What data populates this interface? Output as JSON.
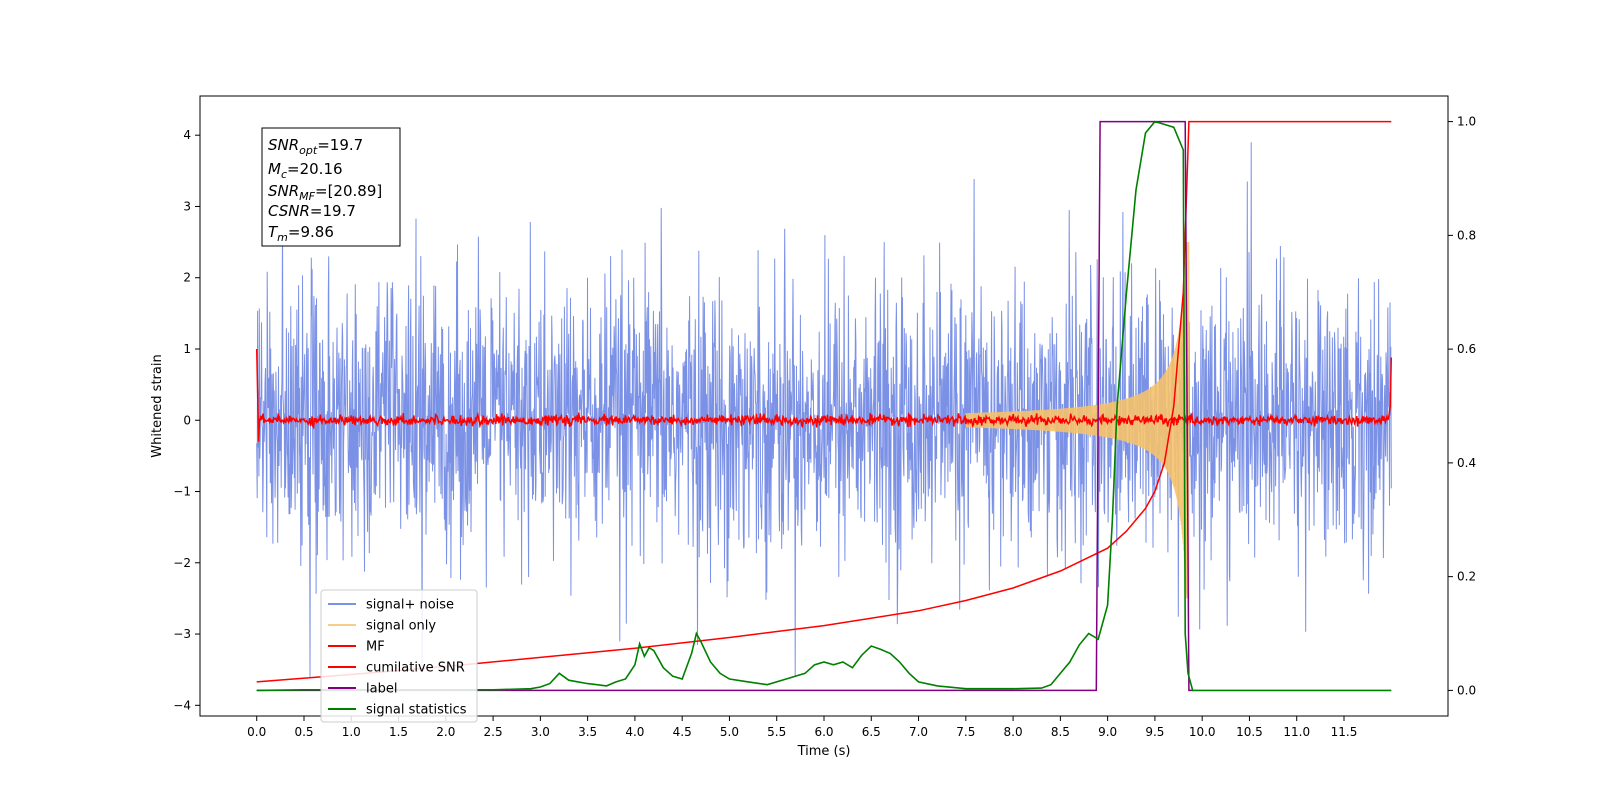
{
  "chart_data": {
    "type": "line",
    "title": "",
    "xlabel": "Time (s)",
    "ylabel": "Whitened strain",
    "y2label": "",
    "xlim": [
      -0.6,
      12.6
    ],
    "ylim": [
      -4.15,
      4.55
    ],
    "y2lim": [
      -0.045,
      1.045
    ],
    "xticks": [
      "0.0",
      "0.5",
      "1.0",
      "1.5",
      "2.0",
      "2.5",
      "3.0",
      "3.5",
      "4.0",
      "4.5",
      "5.0",
      "5.5",
      "6.0",
      "6.5",
      "7.0",
      "7.5",
      "8.0",
      "8.5",
      "9.0",
      "9.5",
      "10.0",
      "10.5",
      "11.0",
      "11.5"
    ],
    "yticks": [
      "4",
      "3",
      "2",
      "1",
      "0",
      "−1",
      "−2",
      "−3",
      "−4"
    ],
    "y2ticks": [
      "1.0",
      "0.8",
      "0.6",
      "0.4",
      "0.2",
      "0.0"
    ],
    "grid": false,
    "legend_position": "lower-left",
    "annotation": {
      "lines": [
        {
          "var": "SNR",
          "sub": "opt",
          "text": "=19.7"
        },
        {
          "var": "M",
          "sub": "c",
          "text": "=20.16"
        },
        {
          "var": "SNR",
          "sub": "MF",
          "text": "=[20.89]"
        },
        {
          "var": "CSNR",
          "sub": "",
          "text": "=19.7"
        },
        {
          "var": "T",
          "sub": "m",
          "text": "=9.86"
        }
      ]
    },
    "series": [
      {
        "name": "signal+ noise",
        "axis": "left",
        "color": "#7b91e6",
        "description": "whitened noise plus signal, roughly within ±2.5 with spikes to ±3.9"
      },
      {
        "name": "signal only",
        "axis": "left",
        "color": "#f5c26b",
        "description": "chirp growing in amplitude up to about ±2.5 near t=9.8 then ending"
      },
      {
        "name": "MF",
        "axis": "left",
        "color": "#ff0000",
        "description": "matched filter output near 0 with spikes at the edges"
      },
      {
        "name": "cumilative SNR",
        "axis": "right",
        "color": "#ff0000",
        "points": [
          [
            0.0,
            0.015
          ],
          [
            1.0,
            0.028
          ],
          [
            2.0,
            0.042
          ],
          [
            3.0,
            0.058
          ],
          [
            4.0,
            0.074
          ],
          [
            5.0,
            0.093
          ],
          [
            6.0,
            0.114
          ],
          [
            7.0,
            0.14
          ],
          [
            7.5,
            0.158
          ],
          [
            8.0,
            0.18
          ],
          [
            8.5,
            0.21
          ],
          [
            9.0,
            0.25
          ],
          [
            9.2,
            0.28
          ],
          [
            9.4,
            0.32
          ],
          [
            9.5,
            0.35
          ],
          [
            9.6,
            0.4
          ],
          [
            9.7,
            0.5
          ],
          [
            9.75,
            0.6
          ],
          [
            9.8,
            0.7
          ],
          [
            9.82,
            0.8
          ],
          [
            9.85,
            0.95
          ],
          [
            9.86,
            1.0
          ],
          [
            12.0,
            1.0
          ]
        ]
      },
      {
        "name": "label",
        "axis": "right",
        "color": "#800080",
        "points": [
          [
            0.0,
            0.0
          ],
          [
            8.88,
            0.0
          ],
          [
            8.92,
            1.0
          ],
          [
            9.82,
            1.0
          ],
          [
            9.86,
            0.0
          ],
          [
            9.9,
            0.0
          ]
        ]
      },
      {
        "name": "signal statistics",
        "axis": "right",
        "color": "#008000",
        "points": [
          [
            0.0,
            0.0
          ],
          [
            0.5,
            0.001
          ],
          [
            1.0,
            0.001
          ],
          [
            1.5,
            0.001
          ],
          [
            2.0,
            0.001
          ],
          [
            2.5,
            0.001
          ],
          [
            2.9,
            0.003
          ],
          [
            3.0,
            0.006
          ],
          [
            3.1,
            0.012
          ],
          [
            3.2,
            0.03
          ],
          [
            3.3,
            0.018
          ],
          [
            3.4,
            0.015
          ],
          [
            3.5,
            0.012
          ],
          [
            3.6,
            0.01
          ],
          [
            3.7,
            0.008
          ],
          [
            3.8,
            0.015
          ],
          [
            3.9,
            0.02
          ],
          [
            4.0,
            0.045
          ],
          [
            4.05,
            0.082
          ],
          [
            4.1,
            0.06
          ],
          [
            4.15,
            0.075
          ],
          [
            4.2,
            0.07
          ],
          [
            4.3,
            0.04
          ],
          [
            4.4,
            0.025
          ],
          [
            4.5,
            0.02
          ],
          [
            4.6,
            0.065
          ],
          [
            4.65,
            0.1
          ],
          [
            4.7,
            0.085
          ],
          [
            4.8,
            0.05
          ],
          [
            4.9,
            0.03
          ],
          [
            5.0,
            0.02
          ],
          [
            5.2,
            0.015
          ],
          [
            5.4,
            0.01
          ],
          [
            5.6,
            0.02
          ],
          [
            5.8,
            0.03
          ],
          [
            5.9,
            0.045
          ],
          [
            6.0,
            0.05
          ],
          [
            6.1,
            0.045
          ],
          [
            6.2,
            0.05
          ],
          [
            6.3,
            0.04
          ],
          [
            6.4,
            0.062
          ],
          [
            6.5,
            0.078
          ],
          [
            6.6,
            0.072
          ],
          [
            6.7,
            0.065
          ],
          [
            6.8,
            0.05
          ],
          [
            6.9,
            0.03
          ],
          [
            7.0,
            0.015
          ],
          [
            7.2,
            0.008
          ],
          [
            7.5,
            0.003
          ],
          [
            8.0,
            0.003
          ],
          [
            8.3,
            0.004
          ],
          [
            8.4,
            0.01
          ],
          [
            8.5,
            0.03
          ],
          [
            8.6,
            0.05
          ],
          [
            8.7,
            0.08
          ],
          [
            8.8,
            0.1
          ],
          [
            8.9,
            0.09
          ],
          [
            9.0,
            0.15
          ],
          [
            9.05,
            0.3
          ],
          [
            9.1,
            0.5
          ],
          [
            9.2,
            0.7
          ],
          [
            9.3,
            0.88
          ],
          [
            9.4,
            0.98
          ],
          [
            9.5,
            1.0
          ],
          [
            9.6,
            0.995
          ],
          [
            9.7,
            0.99
          ],
          [
            9.8,
            0.95
          ],
          [
            9.82,
            0.1
          ],
          [
            9.85,
            0.03
          ],
          [
            9.9,
            0.0
          ],
          [
            12.0,
            0.0
          ]
        ]
      }
    ]
  }
}
